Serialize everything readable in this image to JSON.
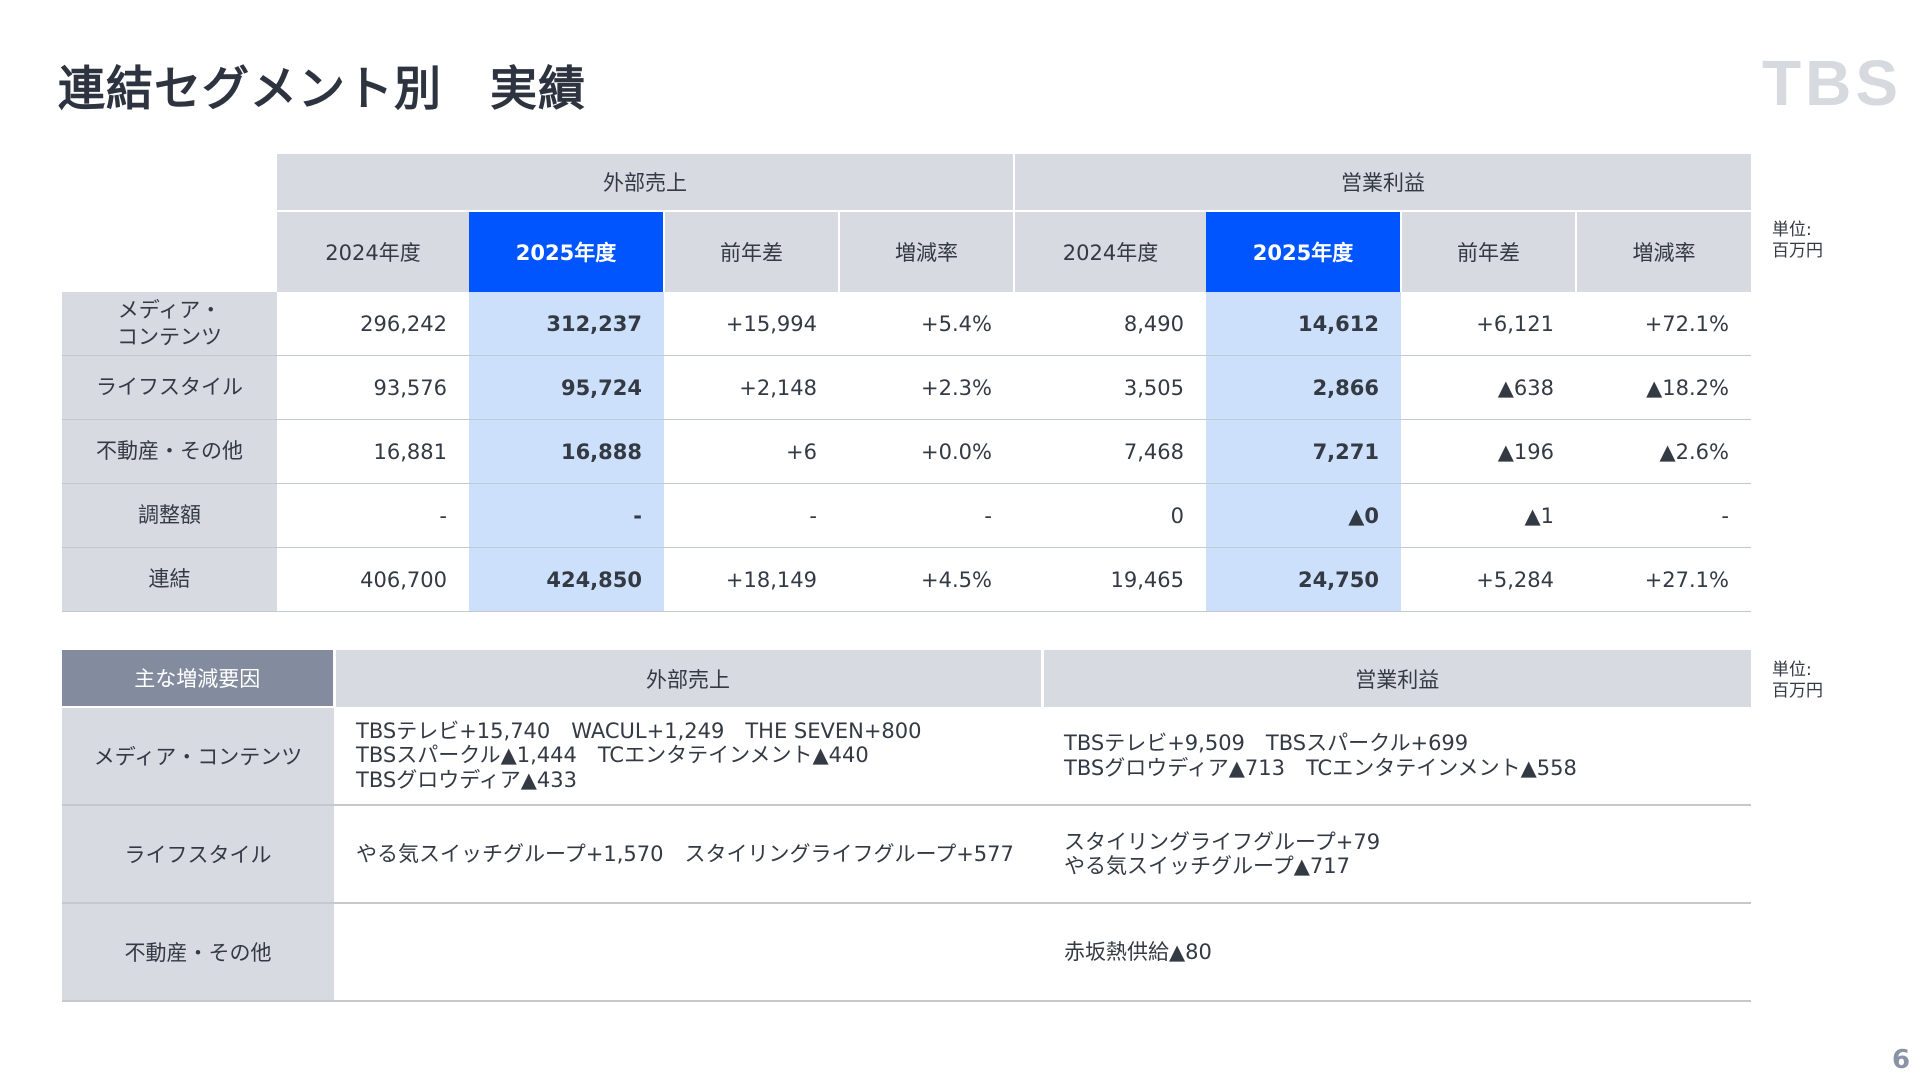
{
  "page": {
    "title": "連結セグメント別　実績",
    "logo": "TBS",
    "page_number": "6"
  },
  "unit_label": [
    "単位:",
    "百万円"
  ],
  "segment_table": {
    "groups": [
      "外部売上",
      "営業利益"
    ],
    "columns": [
      "2024年度",
      "2025年度",
      "前年差",
      "増減率",
      "2024年度",
      "2025年度",
      "前年差",
      "増減率"
    ],
    "rows": [
      {
        "label": [
          "メディア・",
          "コンテンツ"
        ],
        "values": [
          "296,242",
          "312,237",
          "+15,994",
          "+5.4%",
          "8,490",
          "14,612",
          "+6,121",
          "+72.1%"
        ]
      },
      {
        "label": [
          "ライフスタイル"
        ],
        "values": [
          "93,576",
          "95,724",
          "+2,148",
          "+2.3%",
          "3,505",
          "2,866",
          "▲638",
          "▲18.2%"
        ]
      },
      {
        "label": [
          "不動産・その他"
        ],
        "values": [
          "16,881",
          "16,888",
          "+6",
          "+0.0%",
          "7,468",
          "7,271",
          "▲196",
          "▲2.6%"
        ]
      },
      {
        "label": [
          "調整額"
        ],
        "values": [
          "-",
          "-",
          "-",
          "-",
          "0",
          "▲0",
          "▲1",
          "-"
        ]
      },
      {
        "label": [
          "連結"
        ],
        "values": [
          "406,700",
          "424,850",
          "+18,149",
          "+4.5%",
          "19,465",
          "24,750",
          "+5,284",
          "+27.1%"
        ]
      }
    ]
  },
  "factors_table": {
    "corner": "主な増減要因",
    "groups": [
      "外部売上",
      "営業利益"
    ],
    "rows": [
      {
        "label": "メディア・コンテンツ",
        "sales": [
          "TBSテレビ+15,740　WACUL+1,249　THE SEVEN+800",
          "TBSスパークル▲1,444　TCエンタテインメント▲440",
          "TBSグロウディア▲433"
        ],
        "profit": [
          "TBSテレビ+9,509　TBSスパークル+699",
          "TBSグロウディア▲713　TCエンタテインメント▲558"
        ]
      },
      {
        "label": "ライフスタイル",
        "sales": [
          "やる気スイッチグループ+1,570　スタイリングライフグループ+577"
        ],
        "profit": [
          "スタイリングライフグループ+79",
          "やる気スイッチグループ▲717"
        ]
      },
      {
        "label": "不動産・その他",
        "sales": [],
        "profit": [
          "赤坂熱供給▲80"
        ]
      }
    ]
  }
}
